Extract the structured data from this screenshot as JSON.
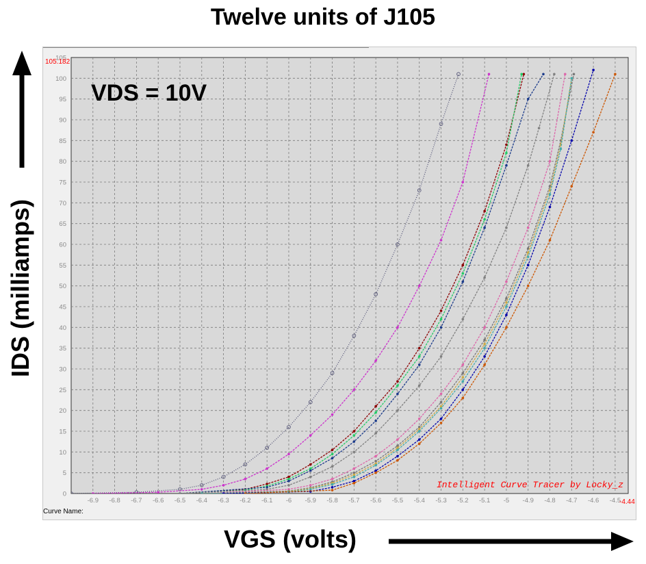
{
  "header": {
    "title": "Twelve units of J105"
  },
  "annotations": {
    "vds": "VDS = 10V",
    "credit": "Intelligent Curve Tracer by Locky_z",
    "ymax_readout": "105.182",
    "xmax_readout": "-4.44",
    "curve_name_label": "Curve Name:"
  },
  "axes": {
    "ylabel": "IDS  (milliamps)",
    "xlabel": "VGS (volts)",
    "arrow_up_icon": "arrow-up-icon",
    "arrow_right_icon": "arrow-right-icon"
  },
  "colors": {
    "plot_bg": "#d9d9d9",
    "grid": "#7a7a7a",
    "tick_label": "#8a8a8a",
    "readout": "#ff0000"
  },
  "chart_data": {
    "type": "line",
    "title": "Twelve units of J105",
    "xlabel": "VGS (volts)",
    "ylabel": "IDS  (milliamps)",
    "xlim": [
      -7.0,
      -4.44
    ],
    "ylim": [
      0,
      105
    ],
    "x_ticks": [
      -6.9,
      -6.8,
      -6.7,
      -6.6,
      -6.5,
      -6.4,
      -6.3,
      -6.2,
      -6.1,
      -6,
      -5.9,
      -5.8,
      -5.7,
      -5.6,
      -5.5,
      -5.4,
      -5.3,
      -5.2,
      -5.1,
      -5,
      -4.9,
      -4.8,
      -4.7,
      -4.6,
      -4.5
    ],
    "y_ticks": [
      0,
      5,
      10,
      15,
      20,
      25,
      30,
      35,
      40,
      45,
      50,
      55,
      60,
      65,
      70,
      75,
      80,
      85,
      90,
      95,
      100,
      105
    ],
    "grid": true,
    "series": [
      {
        "color": "#555577",
        "marker": "open-circle",
        "x": [
          -7.0,
          -6.7,
          -6.5,
          -6.4,
          -6.3,
          -6.2,
          -6.1,
          -6.0,
          -5.9,
          -5.8,
          -5.7,
          -5.6,
          -5.5,
          -5.4,
          -5.3,
          -5.22
        ],
        "y": [
          0,
          0.3,
          1,
          2,
          4,
          7,
          11,
          16,
          22,
          29,
          38,
          48,
          60,
          73,
          89,
          101
        ]
      },
      {
        "color": "#cc33cc",
        "marker": "dot",
        "x": [
          -6.9,
          -6.6,
          -6.4,
          -6.3,
          -6.2,
          -6.1,
          -6.0,
          -5.9,
          -5.8,
          -5.7,
          -5.6,
          -5.5,
          -5.4,
          -5.3,
          -5.2,
          -5.08
        ],
        "y": [
          0,
          0.3,
          1,
          2,
          3.5,
          6,
          9.5,
          14,
          19,
          25,
          32,
          40,
          50,
          61,
          75,
          101
        ]
      },
      {
        "color": "#8b0000",
        "marker": "dot",
        "x": [
          -6.5,
          -6.2,
          -6.1,
          -6.0,
          -5.9,
          -5.8,
          -5.7,
          -5.6,
          -5.5,
          -5.4,
          -5.3,
          -5.2,
          -5.1,
          -5.0,
          -4.92
        ],
        "y": [
          0,
          1,
          2.3,
          4,
          7,
          10.5,
          15,
          21,
          27,
          35,
          44,
          55,
          68,
          84,
          101
        ]
      },
      {
        "color": "#22cc66",
        "marker": "dot",
        "x": [
          -6.5,
          -6.2,
          -6.1,
          -6.0,
          -5.9,
          -5.8,
          -5.7,
          -5.6,
          -5.5,
          -5.4,
          -5.3,
          -5.2,
          -5.1,
          -5.0,
          -4.93
        ],
        "y": [
          0,
          0.8,
          1.8,
          3.5,
          6,
          9.5,
          14,
          19.5,
          26,
          33,
          42,
          53,
          66,
          82,
          101
        ]
      },
      {
        "color": "#1a3a8a",
        "marker": "dot",
        "x": [
          -6.5,
          -6.1,
          -6.0,
          -5.9,
          -5.8,
          -5.7,
          -5.6,
          -5.5,
          -5.4,
          -5.3,
          -5.2,
          -5.1,
          -5.0,
          -4.9,
          -4.83
        ],
        "y": [
          0,
          1.5,
          3,
          5.5,
          8.5,
          12.5,
          17.5,
          24,
          31,
          40,
          51,
          64,
          79,
          95,
          101
        ]
      },
      {
        "color": "#808080",
        "marker": "dot",
        "x": [
          -6.5,
          -6.1,
          -6.0,
          -5.9,
          -5.8,
          -5.7,
          -5.6,
          -5.5,
          -5.4,
          -5.3,
          -5.2,
          -5.1,
          -5.0,
          -4.9,
          -4.85,
          -4.78
        ],
        "y": [
          0,
          1,
          2,
          4,
          6.5,
          10,
          14.5,
          20,
          26,
          33,
          42,
          52,
          64,
          79,
          88,
          101
        ]
      },
      {
        "color": "#dd66aa",
        "marker": "dot",
        "x": [
          -6.4,
          -6.0,
          -5.9,
          -5.8,
          -5.7,
          -5.6,
          -5.5,
          -5.4,
          -5.3,
          -5.2,
          -5.1,
          -5.0,
          -4.9,
          -4.8,
          -4.73
        ],
        "y": [
          0,
          1,
          2,
          3.5,
          6,
          9,
          13,
          18,
          24,
          31,
          40,
          51,
          64,
          80,
          101
        ]
      },
      {
        "color": "#777777",
        "marker": "dot",
        "x": [
          -6.4,
          -6.0,
          -5.9,
          -5.8,
          -5.7,
          -5.6,
          -5.5,
          -5.4,
          -5.3,
          -5.2,
          -5.1,
          -5.0,
          -4.9,
          -4.8,
          -4.75,
          -4.69
        ],
        "y": [
          0,
          0.6,
          1.4,
          2.8,
          5,
          7.8,
          11.5,
          16,
          22,
          29,
          37,
          47,
          59,
          74,
          85,
          101
        ]
      },
      {
        "color": "#ccaa44",
        "marker": "dot",
        "x": [
          -6.4,
          -6.0,
          -5.9,
          -5.8,
          -5.7,
          -5.6,
          -5.5,
          -5.4,
          -5.3,
          -5.2,
          -5.1,
          -5.0,
          -4.9,
          -4.8,
          -4.75,
          -4.7
        ],
        "y": [
          0,
          0.5,
          1.2,
          2.5,
          4.5,
          7.2,
          11,
          15.5,
          21,
          28,
          36,
          46,
          58,
          73,
          84,
          100
        ]
      },
      {
        "color": "#44aaaa",
        "marker": "dot",
        "x": [
          -6.4,
          -6.0,
          -5.9,
          -5.8,
          -5.7,
          -5.6,
          -5.5,
          -5.4,
          -5.3,
          -5.2,
          -5.1,
          -5.0,
          -4.9,
          -4.8,
          -4.75,
          -4.7
        ],
        "y": [
          0,
          0.4,
          1,
          2.2,
          4,
          6.8,
          10.5,
          15,
          20.5,
          27,
          35,
          45,
          57,
          72,
          83,
          100
        ]
      },
      {
        "color": "#0000aa",
        "marker": "dot",
        "x": [
          -6.3,
          -5.9,
          -5.8,
          -5.7,
          -5.6,
          -5.5,
          -5.4,
          -5.3,
          -5.2,
          -5.1,
          -5.0,
          -4.9,
          -4.8,
          -4.7,
          -4.6
        ],
        "y": [
          0,
          0.5,
          1.5,
          3,
          5.5,
          9,
          13,
          18,
          25,
          33,
          43,
          55,
          69,
          85,
          102
        ]
      },
      {
        "color": "#cc5500",
        "marker": "dot",
        "x": [
          -6.2,
          -5.8,
          -5.7,
          -5.6,
          -5.5,
          -5.4,
          -5.3,
          -5.2,
          -5.1,
          -5.0,
          -4.9,
          -4.8,
          -4.7,
          -4.6,
          -4.5
        ],
        "y": [
          0,
          0.8,
          2.5,
          5,
          8,
          12,
          17,
          23,
          31,
          40,
          50,
          61,
          74,
          87,
          101
        ]
      }
    ]
  }
}
